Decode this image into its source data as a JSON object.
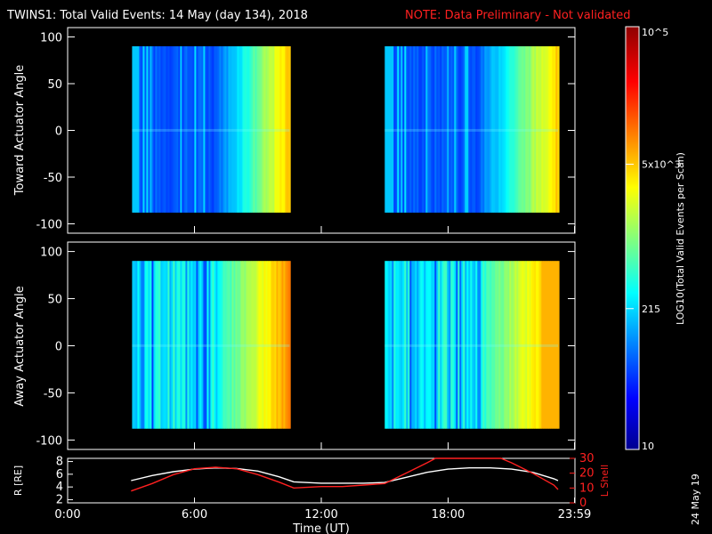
{
  "header": {
    "title": "TWINS1: Total Valid Events: 14 May (day 134), 2018",
    "note": "NOTE: Data Preliminary - Not validated"
  },
  "colorbar": {
    "label": "LOG10(Total Valid Events per Scan)",
    "ticks": [
      {
        "value": 100000,
        "label": "10^5"
      },
      {
        "value": 5000,
        "label": "5x10^3"
      },
      {
        "value": 215,
        "label": "215"
      },
      {
        "value": 10,
        "label": "10"
      }
    ],
    "range": [
      10,
      100000
    ],
    "scale": "log",
    "colormap": "jet"
  },
  "stamp": "24 May 19",
  "chart_data": [
    {
      "type": "heatmap",
      "name": "toward",
      "ylabel": "Toward Actuator Angle",
      "ylim": [
        -110,
        110
      ],
      "yticks": [
        100,
        50,
        0,
        -50,
        -100
      ],
      "xlim": [
        0,
        24
      ],
      "angle_range": [
        -88,
        90
      ],
      "segments": [
        {
          "start_hour": 3.05,
          "end_hour": 10.5
        },
        {
          "start_hour": 15.0,
          "end_hour": 23.2
        }
      ]
    },
    {
      "type": "heatmap",
      "name": "away",
      "ylabel": "Away Actuator Angle",
      "ylim": [
        -110,
        110
      ],
      "yticks": [
        100,
        50,
        0,
        -50,
        -100
      ],
      "xlim": [
        0,
        24
      ],
      "angle_range": [
        -88,
        90
      ],
      "segments": [
        {
          "start_hour": 3.05,
          "end_hour": 10.5
        },
        {
          "start_hour": 15.0,
          "end_hour": 23.2
        }
      ]
    },
    {
      "type": "line",
      "name": "orbit",
      "xlabel": "Time (UT)",
      "xlim": [
        0,
        24
      ],
      "xticks": [
        {
          "value": 0,
          "label": "0:00"
        },
        {
          "value": 6,
          "label": "6:00"
        },
        {
          "value": 12,
          "label": "12:00"
        },
        {
          "value": 18,
          "label": "18:00"
        },
        {
          "value": 23.98,
          "label": "23:59"
        }
      ],
      "left_axis": {
        "label": "R [RE]",
        "ylim": [
          1.5,
          8.5
        ],
        "ticks": [
          2,
          4,
          6,
          8
        ]
      },
      "right_axis": {
        "label": "L Shell",
        "ylim": [
          0,
          30
        ],
        "ticks": [
          0,
          10,
          20,
          30
        ],
        "color": "#ff2020"
      },
      "series": [
        {
          "axis": "left",
          "color": "#ffffff",
          "x": [
            3.0,
            4.0,
            5.0,
            6.0,
            7.0,
            8.0,
            9.0,
            10.0,
            10.7,
            12.0,
            13.0,
            14.0,
            15.0,
            16.0,
            17.0,
            18.0,
            19.0,
            20.0,
            21.0,
            22.0,
            23.0,
            23.2
          ],
          "y": [
            5.0,
            5.8,
            6.4,
            6.8,
            7.0,
            6.9,
            6.5,
            5.6,
            4.8,
            4.6,
            4.6,
            4.6,
            4.7,
            5.5,
            6.3,
            6.8,
            7.0,
            7.0,
            6.8,
            6.3,
            5.3,
            5.0
          ]
        },
        {
          "axis": "right",
          "color": "#ff2020",
          "x": [
            3.0,
            4.0,
            5.0,
            6.0,
            7.0,
            8.0,
            9.0,
            10.0,
            10.7,
            12.0,
            13.0,
            14.0,
            15.0,
            16.0,
            17.0,
            17.4,
            20.5,
            21.0,
            22.0,
            23.0,
            23.2
          ],
          "y": [
            8,
            13,
            19,
            23,
            24,
            23,
            19,
            14,
            10,
            11,
            11,
            12,
            13,
            20,
            27,
            30,
            30,
            27,
            20,
            12,
            9
          ]
        }
      ]
    }
  ]
}
